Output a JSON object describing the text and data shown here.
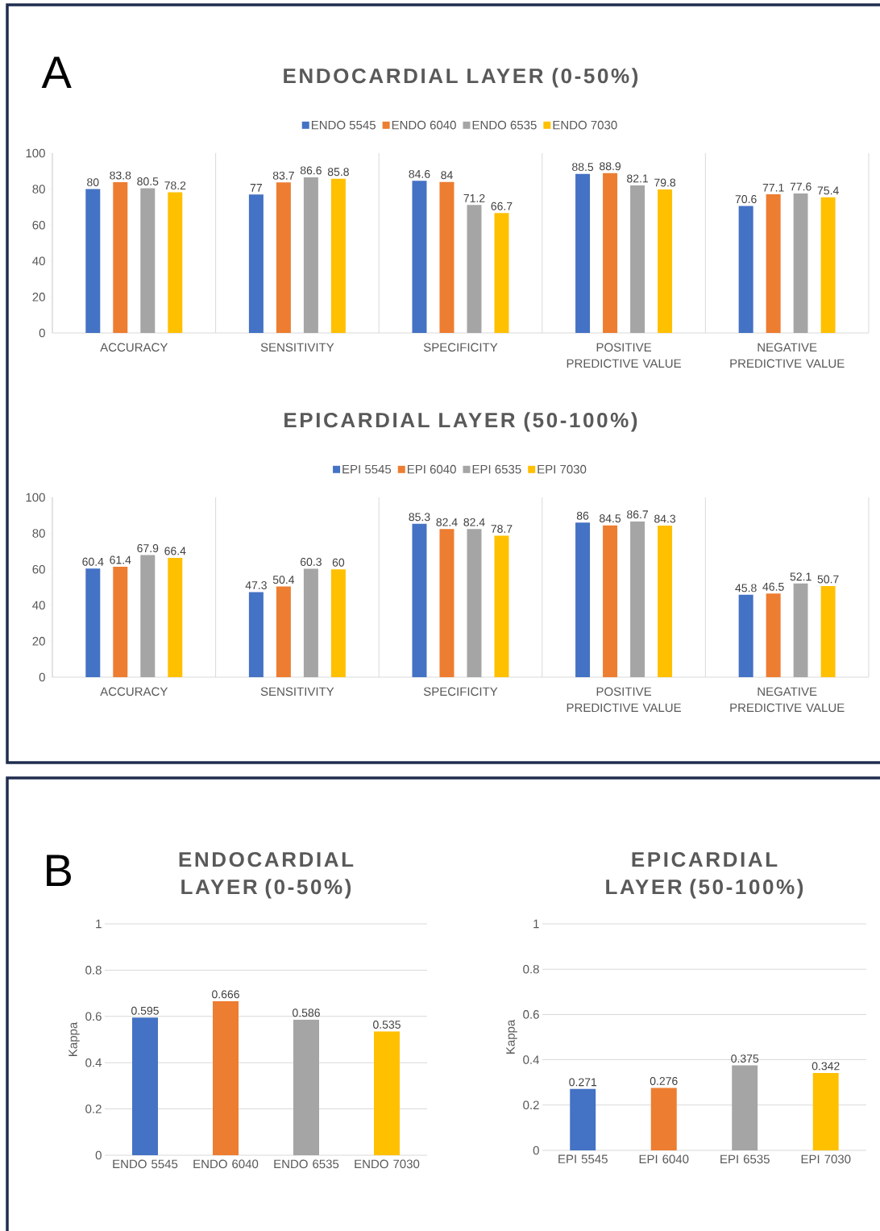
{
  "chart_data": [
    {
      "type": "bar",
      "title": "ENDOCARDIAL LAYER (0-50%)",
      "annotations": [
        "A"
      ],
      "categories": [
        "ACCURACY",
        "SENSITIVITY",
        "SPECIFICITY",
        "POSITIVE PREDICTIVE VALUE",
        "NEGATIVE PREDICTIVE VALUE"
      ],
      "series": [
        {
          "name": "ENDO 5545",
          "color": "#4472c4",
          "values": [
            80,
            77,
            84.6,
            88.5,
            70.6
          ]
        },
        {
          "name": "ENDO 6040",
          "color": "#ed7d31",
          "values": [
            83.8,
            83.7,
            84,
            88.9,
            77.1
          ]
        },
        {
          "name": "ENDO 6535",
          "color": "#a5a5a5",
          "values": [
            80.5,
            86.6,
            71.2,
            82.1,
            77.6
          ]
        },
        {
          "name": "ENDO 7030",
          "color": "#ffc000",
          "values": [
            78.2,
            85.8,
            66.7,
            79.8,
            75.4
          ]
        }
      ],
      "ylim": [
        0,
        100
      ],
      "yticks": [
        0,
        20,
        40,
        60,
        80,
        100
      ],
      "grid": "x",
      "legend": "top",
      "data_labels": true
    },
    {
      "type": "bar",
      "title": "EPICARDIAL LAYER (50-100%)",
      "categories": [
        "ACCURACY",
        "SENSITIVITY",
        "SPECIFICITY",
        "POSITIVE PREDICTIVE VALUE",
        "NEGATIVE PREDICTIVE VALUE"
      ],
      "series": [
        {
          "name": "EPI 5545",
          "color": "#4472c4",
          "values": [
            60.4,
            47.3,
            85.3,
            86,
            45.8
          ]
        },
        {
          "name": "EPI 6040",
          "color": "#ed7d31",
          "values": [
            61.4,
            50.4,
            82.4,
            84.5,
            46.5
          ]
        },
        {
          "name": "EPI 6535",
          "color": "#a5a5a5",
          "values": [
            67.9,
            60.3,
            82.4,
            86.7,
            52.1
          ]
        },
        {
          "name": "EPI 7030",
          "color": "#ffc000",
          "values": [
            66.4,
            60,
            78.7,
            84.3,
            50.7
          ]
        }
      ],
      "ylim": [
        0,
        100
      ],
      "yticks": [
        0,
        20,
        40,
        60,
        80,
        100
      ],
      "grid": "x",
      "legend": "top",
      "data_labels": true
    },
    {
      "type": "bar",
      "title": "ENDOCARDIAL LAYER (0-50%)",
      "annotations": [
        "B"
      ],
      "ylabel": "Kappa",
      "categories": [
        "ENDO 5545",
        "ENDO 6040",
        "ENDO 6535",
        "ENDO 7030"
      ],
      "values": [
        0.595,
        0.666,
        0.586,
        0.535
      ],
      "colors": [
        "#4472c4",
        "#ed7d31",
        "#a5a5a5",
        "#ffc000"
      ],
      "ylim": [
        0,
        1
      ],
      "yticks": [
        0,
        0.2,
        0.4,
        0.6,
        0.8,
        1
      ],
      "grid": "y",
      "data_labels": true
    },
    {
      "type": "bar",
      "title": "EPICARDIAL LAYER (50-100%)",
      "ylabel": "Kappa",
      "categories": [
        "EPI 5545",
        "EPI 6040",
        "EPI 6535",
        "EPI 7030"
      ],
      "values": [
        0.271,
        0.276,
        0.375,
        0.342
      ],
      "colors": [
        "#4472c4",
        "#ed7d31",
        "#a5a5a5",
        "#ffc000"
      ],
      "ylim": [
        0,
        1
      ],
      "yticks": [
        0,
        0.2,
        0.4,
        0.6,
        0.8,
        1
      ],
      "grid": "y",
      "data_labels": true
    }
  ]
}
